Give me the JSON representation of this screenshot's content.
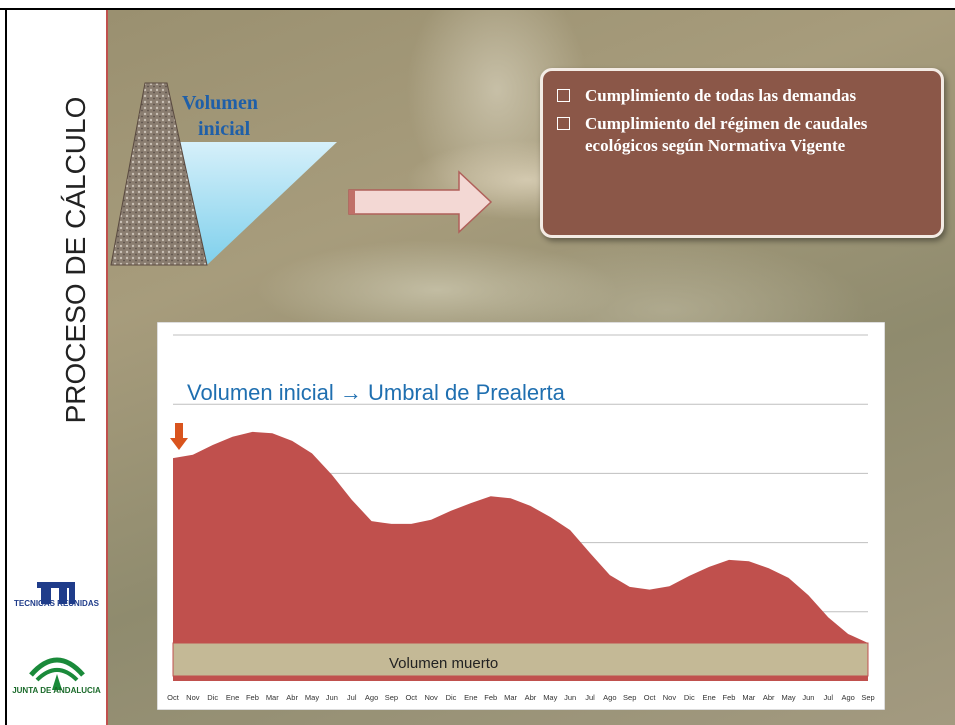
{
  "sidebar": {
    "title": "PROCESO DE CÁLCULO",
    "logo_1": "TECNICAS REUNIDAS",
    "logo_2": "JUNTA DE ANDALUCIA"
  },
  "reservoir": {
    "label_lines": [
      "Volumen",
      "inicial"
    ]
  },
  "requirements": [
    "Cumplimiento de todas las demandas",
    "Cumplimiento del régimen de caudales ecológicos según Normativa Vigente"
  ],
  "chart_data": {
    "type": "area",
    "title": "Volumen inicial → Umbral de Prealerta",
    "annotation": "Volumen muerto",
    "color": "#c0504d",
    "grid": true,
    "categories": [
      "Oct",
      "Nov",
      "Dic",
      "Ene",
      "Feb",
      "Mar",
      "Abr",
      "May",
      "Jun",
      "Jul",
      "Ago",
      "Sep",
      "Oct",
      "Nov",
      "Dic",
      "Ene",
      "Feb",
      "Mar",
      "Abr",
      "May",
      "Jun",
      "Jul",
      "Ago",
      "Sep",
      "Oct",
      "Nov",
      "Dic",
      "Ene",
      "Feb",
      "Mar",
      "Abr",
      "May",
      "Jun",
      "Jul",
      "Ago",
      "Sep"
    ],
    "values": [
      3.22,
      3.27,
      3.41,
      3.53,
      3.6,
      3.58,
      3.47,
      3.29,
      2.98,
      2.62,
      2.31,
      2.27,
      2.27,
      2.33,
      2.46,
      2.57,
      2.67,
      2.64,
      2.53,
      2.37,
      2.18,
      1.85,
      1.53,
      1.36,
      1.32,
      1.37,
      1.52,
      1.65,
      1.75,
      1.73,
      1.63,
      1.49,
      1.24,
      0.92,
      0.68,
      0.55
    ],
    "ylim": [
      0,
      5
    ],
    "yticks": [
      1,
      2,
      3,
      4,
      5
    ]
  }
}
